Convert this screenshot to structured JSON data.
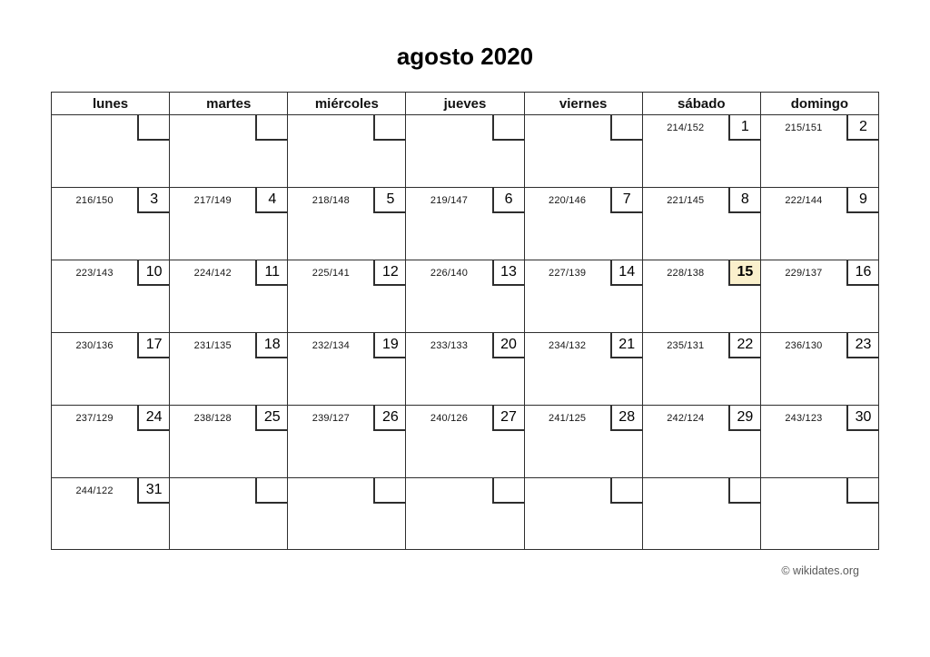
{
  "title": "agosto 2020",
  "weekday_headers": [
    "lunes",
    "martes",
    "miércoles",
    "jueves",
    "viernes",
    "sábado",
    "domingo"
  ],
  "calendar": {
    "month_label": "agosto 2020",
    "highlighted_day": "15",
    "weeks": [
      [
        {
          "label": "",
          "day": ""
        },
        {
          "label": "",
          "day": ""
        },
        {
          "label": "",
          "day": ""
        },
        {
          "label": "",
          "day": ""
        },
        {
          "label": "",
          "day": ""
        },
        {
          "label": "214/152",
          "day": "1"
        },
        {
          "label": "215/151",
          "day": "2"
        }
      ],
      [
        {
          "label": "216/150",
          "day": "3"
        },
        {
          "label": "217/149",
          "day": "4"
        },
        {
          "label": "218/148",
          "day": "5"
        },
        {
          "label": "219/147",
          "day": "6"
        },
        {
          "label": "220/146",
          "day": "7"
        },
        {
          "label": "221/145",
          "day": "8"
        },
        {
          "label": "222/144",
          "day": "9"
        }
      ],
      [
        {
          "label": "223/143",
          "day": "10"
        },
        {
          "label": "224/142",
          "day": "11"
        },
        {
          "label": "225/141",
          "day": "12"
        },
        {
          "label": "226/140",
          "day": "13"
        },
        {
          "label": "227/139",
          "day": "14"
        },
        {
          "label": "228/138",
          "day": "15",
          "highlight": true
        },
        {
          "label": "229/137",
          "day": "16"
        }
      ],
      [
        {
          "label": "230/136",
          "day": "17"
        },
        {
          "label": "231/135",
          "day": "18"
        },
        {
          "label": "232/134",
          "day": "19"
        },
        {
          "label": "233/133",
          "day": "20"
        },
        {
          "label": "234/132",
          "day": "21"
        },
        {
          "label": "235/131",
          "day": "22"
        },
        {
          "label": "236/130",
          "day": "23"
        }
      ],
      [
        {
          "label": "237/129",
          "day": "24"
        },
        {
          "label": "238/128",
          "day": "25"
        },
        {
          "label": "239/127",
          "day": "26"
        },
        {
          "label": "240/126",
          "day": "27"
        },
        {
          "label": "241/125",
          "day": "28"
        },
        {
          "label": "242/124",
          "day": "29"
        },
        {
          "label": "243/123",
          "day": "30"
        }
      ],
      [
        {
          "label": "244/122",
          "day": "31"
        },
        {
          "label": "",
          "day": ""
        },
        {
          "label": "",
          "day": ""
        },
        {
          "label": "",
          "day": ""
        },
        {
          "label": "",
          "day": ""
        },
        {
          "label": "",
          "day": ""
        },
        {
          "label": "",
          "day": ""
        }
      ]
    ]
  },
  "footer": {
    "credit": "© wikidates.org"
  },
  "colors": {
    "grid_line": "#2e2e2e",
    "highlight_bg": "#faf0cc",
    "footer_text": "#5a5a5a"
  }
}
